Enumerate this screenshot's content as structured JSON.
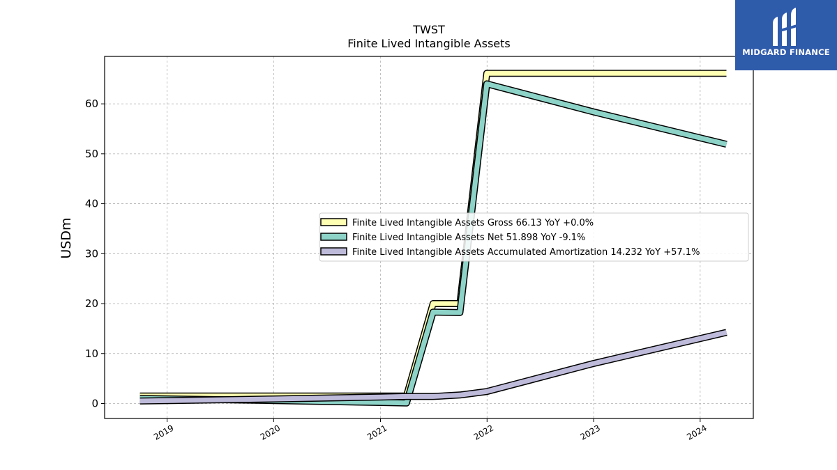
{
  "chart_data": {
    "type": "line",
    "title": "TWST",
    "subtitle": "Finite Lived Intangible Assets",
    "ylabel": "USDm",
    "xlabel": "",
    "xlim": [
      "2018-06-01",
      "2024-07-01"
    ],
    "ylim": [
      -3,
      69.5
    ],
    "grid": true,
    "legend_position": "center-right",
    "x_ticks": [
      "2019",
      "2020",
      "2021",
      "2022",
      "2023",
      "2024"
    ],
    "y_ticks": [
      0,
      10,
      20,
      30,
      40,
      50,
      60
    ],
    "series": [
      {
        "name": "Finite Lived Intangible Assets Gross  66.13 YoY +0.0%",
        "color": "#ffffb3",
        "points": [
          [
            "2018-09-30",
            1.5
          ],
          [
            "2019-12-31",
            1.5
          ],
          [
            "2020-12-31",
            1.5
          ],
          [
            "2021-03-31",
            1.5
          ],
          [
            "2021-06-30",
            20.0
          ],
          [
            "2021-09-30",
            20.0
          ],
          [
            "2021-12-31",
            66.13
          ],
          [
            "2022-12-31",
            66.13
          ],
          [
            "2024-03-31",
            66.13
          ]
        ]
      },
      {
        "name": "Finite Lived Intangible Assets Net  51.898 YoY -9.1%",
        "color": "#8dd3c7",
        "points": [
          [
            "2018-09-30",
            1.0
          ],
          [
            "2019-12-31",
            0.6
          ],
          [
            "2020-12-31",
            0.2
          ],
          [
            "2021-03-31",
            0.1
          ],
          [
            "2021-06-30",
            18.3
          ],
          [
            "2021-09-30",
            18.2
          ],
          [
            "2021-12-31",
            64.0
          ],
          [
            "2022-12-31",
            58.4
          ],
          [
            "2024-03-31",
            51.898
          ]
        ]
      },
      {
        "name": "Finite Lived Intangible Assets Accumulated Amortization  14.232 YoY +57.1%",
        "color": "#bebada",
        "points": [
          [
            "2018-09-30",
            0.5
          ],
          [
            "2019-12-31",
            0.9
          ],
          [
            "2020-12-31",
            1.3
          ],
          [
            "2021-03-31",
            1.4
          ],
          [
            "2021-06-30",
            1.4
          ],
          [
            "2021-09-30",
            1.7
          ],
          [
            "2021-12-31",
            2.4
          ],
          [
            "2022-12-31",
            8.0
          ],
          [
            "2024-03-31",
            14.232
          ]
        ]
      }
    ]
  },
  "logo": {
    "text": "MIDGARD FINANCE",
    "background": "#2f5bab"
  }
}
